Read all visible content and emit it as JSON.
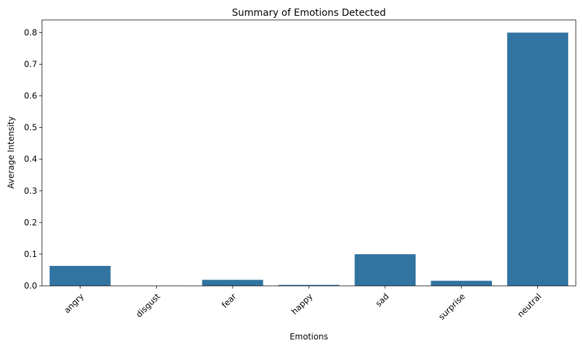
{
  "chart_data": {
    "type": "bar",
    "title": "Summary of Emotions Detected",
    "xlabel": "Emotions",
    "ylabel": "Average Intensity",
    "categories": [
      "angry",
      "disgust",
      "fear",
      "happy",
      "sad",
      "surprise",
      "neutral"
    ],
    "values": [
      0.063,
      0.0003,
      0.019,
      0.003,
      0.1,
      0.016,
      0.8
    ],
    "ylim": [
      0,
      0.84
    ],
    "yticks": [
      "0.0",
      "0.1",
      "0.2",
      "0.3",
      "0.4",
      "0.5",
      "0.6",
      "0.7",
      "0.8"
    ],
    "bar_color": "#3274a1",
    "grid": false,
    "legend": "none"
  }
}
